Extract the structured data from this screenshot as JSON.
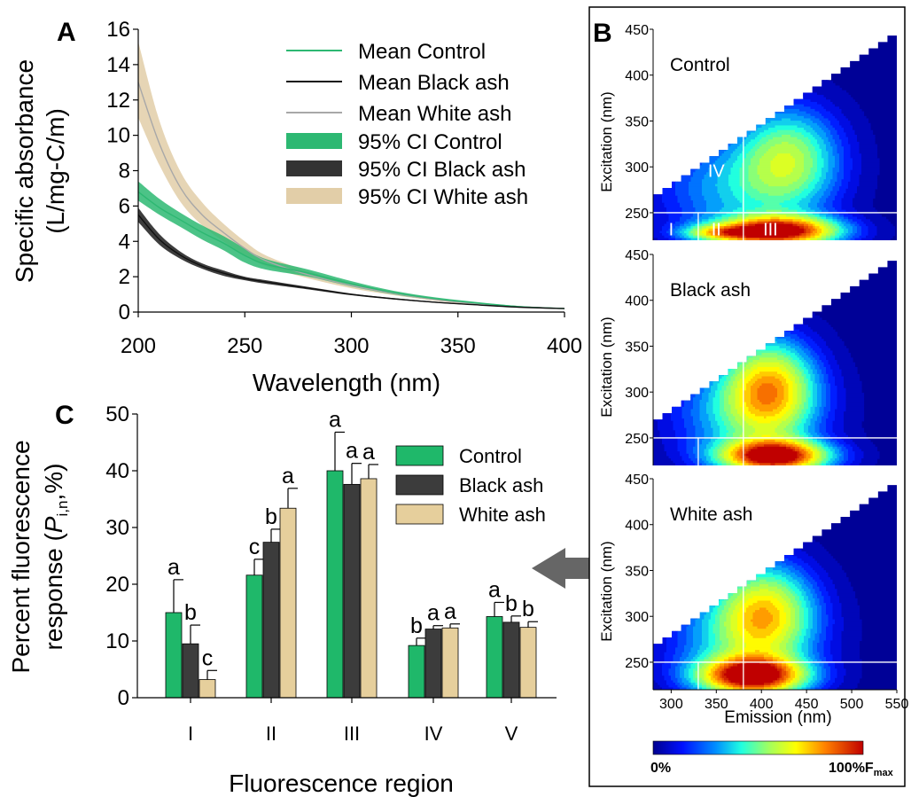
{
  "chart_data": [
    {
      "type": "line",
      "panel_label": "A",
      "xlabel": "Wavelength (nm)",
      "ylabel_line1": "Specific absorbance",
      "ylabel_line2": "(L/mg-C/m)",
      "xlim": [
        200,
        400
      ],
      "ylim": [
        0,
        16
      ],
      "xticks": [
        200,
        250,
        300,
        350,
        400
      ],
      "yticks": [
        0,
        2,
        4,
        6,
        8,
        10,
        12,
        14,
        16
      ],
      "x": [
        200,
        210,
        220,
        230,
        240,
        250,
        260,
        280,
        300,
        320,
        340,
        360,
        380,
        400
      ],
      "series": [
        {
          "name": "Mean Control",
          "color": "#2db872",
          "values": [
            6.8,
            5.9,
            5.2,
            4.5,
            3.9,
            3.2,
            2.7,
            2.2,
            1.6,
            1.1,
            0.75,
            0.5,
            0.3,
            0.2
          ]
        },
        {
          "name": "Mean Black ash",
          "color": "#111111",
          "values": [
            5.5,
            4.1,
            3.2,
            2.6,
            2.2,
            1.9,
            1.7,
            1.35,
            1.0,
            0.75,
            0.55,
            0.4,
            0.27,
            0.2
          ]
        },
        {
          "name": "Mean White ash",
          "color": "#a8a8a8",
          "values": [
            13.0,
            9.5,
            7.0,
            5.5,
            4.5,
            3.6,
            2.9,
            2.1,
            1.5,
            1.05,
            0.7,
            0.45,
            0.3,
            0.2
          ]
        }
      ],
      "bands": [
        {
          "name": "95% CI Control",
          "color": "#2db872",
          "lower": [
            6.3,
            5.5,
            4.8,
            4.1,
            3.5,
            2.8,
            2.4,
            2.0,
            1.45,
            1.0,
            0.68,
            0.45,
            0.27,
            0.18
          ],
          "upper": [
            7.4,
            6.4,
            5.6,
            4.9,
            4.3,
            3.6,
            3.0,
            2.4,
            1.75,
            1.2,
            0.82,
            0.55,
            0.33,
            0.22
          ]
        },
        {
          "name": "95% CI Black ash",
          "color": "#333333",
          "lower": [
            5.1,
            3.8,
            3.0,
            2.45,
            2.05,
            1.8,
            1.6,
            1.28,
            0.95,
            0.71,
            0.52,
            0.38,
            0.25,
            0.18
          ],
          "upper": [
            5.9,
            4.4,
            3.4,
            2.75,
            2.35,
            2.0,
            1.8,
            1.42,
            1.05,
            0.79,
            0.58,
            0.42,
            0.29,
            0.22
          ]
        },
        {
          "name": "95% CI White ash",
          "color": "#e2cea8",
          "lower": [
            11.0,
            8.3,
            6.2,
            4.9,
            4.0,
            3.2,
            2.6,
            1.9,
            1.35,
            0.95,
            0.63,
            0.4,
            0.27,
            0.18
          ],
          "upper": [
            15.3,
            10.8,
            7.9,
            6.2,
            5.0,
            4.0,
            3.2,
            2.3,
            1.65,
            1.15,
            0.77,
            0.5,
            0.33,
            0.22
          ]
        }
      ],
      "legend": "top-right"
    },
    {
      "type": "heatmap",
      "panel_label": "B",
      "xlabel": "Emission (nm)",
      "ylabel": "Excitation (nm)",
      "xlim": [
        280,
        550
      ],
      "ylim": [
        220,
        450
      ],
      "xticks": [
        300,
        350,
        400,
        450,
        500,
        550
      ],
      "yticks": [
        250,
        300,
        350,
        400,
        450
      ],
      "region_lines": {
        "emission": [
          330,
          380
        ],
        "excitation": 250
      },
      "region_labels": [
        "I",
        "II",
        "III",
        "IV",
        "V"
      ],
      "colorbar": {
        "min_label": "0%",
        "max_label": "100%F",
        "max_subscript": "max"
      },
      "subpanels": [
        {
          "title": "Control",
          "show_region_labels": true,
          "show_xaxis": false
        },
        {
          "title": "Black ash",
          "show_region_labels": false,
          "show_xaxis": false
        },
        {
          "title": "White ash",
          "show_region_labels": false,
          "show_xaxis": true
        }
      ]
    },
    {
      "type": "bar",
      "panel_label": "C",
      "xlabel": "Fluorescence region",
      "ylabel_line1": "Percent fluorescence",
      "ylabel_line2_pre": "response (",
      "ylabel_line2_italic": "P",
      "ylabel_line2_sub": "i,n",
      "ylabel_line2_post": ",%)",
      "ylim": [
        0,
        50
      ],
      "yticks": [
        0,
        10,
        20,
        30,
        40,
        50
      ],
      "categories": [
        "I",
        "II",
        "III",
        "IV",
        "V"
      ],
      "series": [
        {
          "name": "Control",
          "color": "#1fb86a",
          "values": [
            15.0,
            21.6,
            40.0,
            9.2,
            14.3
          ],
          "errors": [
            5.8,
            2.8,
            6.8,
            1.3,
            2.5
          ],
          "letters": [
            "a",
            "c",
            "a",
            "b",
            "a"
          ]
        },
        {
          "name": "Black ash",
          "color": "#3c3c3c",
          "values": [
            9.5,
            27.4,
            37.6,
            12.1,
            13.3
          ],
          "errors": [
            3.3,
            2.3,
            3.7,
            0.6,
            1.1
          ],
          "letters": [
            "b",
            "b",
            "a",
            "a",
            "b"
          ]
        },
        {
          "name": "White ash",
          "color": "#e6cf9c",
          "values": [
            3.2,
            33.4,
            38.6,
            12.3,
            12.4
          ],
          "errors": [
            1.6,
            3.5,
            2.5,
            0.7,
            1.0
          ],
          "letters": [
            "c",
            "a",
            "a",
            "a",
            "b"
          ]
        }
      ],
      "legend": "top-right"
    }
  ]
}
